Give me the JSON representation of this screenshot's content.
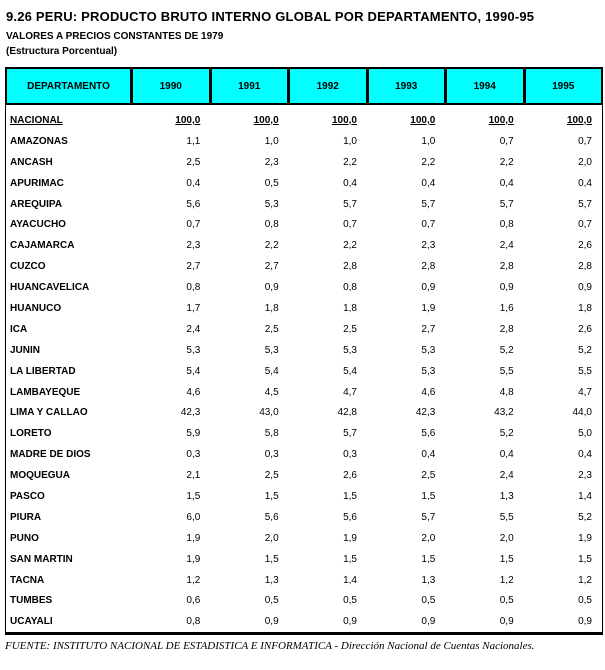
{
  "page": {
    "title": "9.26 PERU: PRODUCTO BRUTO INTERNO GLOBAL POR DEPARTAMENTO, 1990-95",
    "subtitle1": "VALORES A PRECIOS CONSTANTES DE 1979",
    "subtitle2": "(Estructura Porcentual)",
    "footer": "FUENTE: INSTITUTO NACIONAL DE ESTADISTICA E INFORMATICA - Dirección Nacional de Cuentas Nacionales."
  },
  "colors": {
    "header_bg": "#00FFFF",
    "border": "#000000",
    "text": "#000000",
    "page_bg": "#FFFFFF"
  },
  "table": {
    "header": [
      "DEPARTAMENTO",
      "1990",
      "1991",
      "1992",
      "1993",
      "1994",
      "1995"
    ],
    "rows": [
      {
        "label": "NACIONAL",
        "underline": true,
        "values": [
          "100,0",
          "100,0",
          "100,0",
          "100,0",
          "100,0",
          "100,0"
        ]
      },
      {
        "label": "AMAZONAS",
        "underline": false,
        "values": [
          "1,1",
          "1,0",
          "1,0",
          "1,0",
          "0,7",
          "0,7"
        ]
      },
      {
        "label": "ANCASH",
        "underline": false,
        "values": [
          "2,5",
          "2,3",
          "2,2",
          "2,2",
          "2,2",
          "2,0"
        ]
      },
      {
        "label": "APURIMAC",
        "underline": false,
        "values": [
          "0,4",
          "0,5",
          "0,4",
          "0,4",
          "0,4",
          "0,4"
        ]
      },
      {
        "label": "AREQUIPA",
        "underline": false,
        "values": [
          "5,6",
          "5,3",
          "5,7",
          "5,7",
          "5,7",
          "5,7"
        ]
      },
      {
        "label": "AYACUCHO",
        "underline": false,
        "values": [
          "0,7",
          "0,8",
          "0,7",
          "0,7",
          "0,8",
          "0,7"
        ]
      },
      {
        "label": "CAJAMARCA",
        "underline": false,
        "values": [
          "2,3",
          "2,2",
          "2,2",
          "2,3",
          "2,4",
          "2,6"
        ]
      },
      {
        "label": "CUZCO",
        "underline": false,
        "values": [
          "2,7",
          "2,7",
          "2,8",
          "2,8",
          "2,8",
          "2,8"
        ]
      },
      {
        "label": "HUANCAVELICA",
        "underline": false,
        "values": [
          "0,8",
          "0,9",
          "0,8",
          "0,9",
          "0,9",
          "0,9"
        ]
      },
      {
        "label": "HUANUCO",
        "underline": false,
        "values": [
          "1,7",
          "1,8",
          "1,8",
          "1,9",
          "1,6",
          "1,8"
        ]
      },
      {
        "label": "ICA",
        "underline": false,
        "values": [
          "2,4",
          "2,5",
          "2,5",
          "2,7",
          "2,8",
          "2,6"
        ]
      },
      {
        "label": "JUNIN",
        "underline": false,
        "values": [
          "5,3",
          "5,3",
          "5,3",
          "5,3",
          "5,2",
          "5,2"
        ]
      },
      {
        "label": "LA LIBERTAD",
        "underline": false,
        "values": [
          "5,4",
          "5,4",
          "5,4",
          "5,3",
          "5,5",
          "5,5"
        ]
      },
      {
        "label": "LAMBAYEQUE",
        "underline": false,
        "values": [
          "4,6",
          "4,5",
          "4,7",
          "4,6",
          "4,8",
          "4,7"
        ]
      },
      {
        "label": "LIMA Y CALLAO",
        "underline": false,
        "values": [
          "42,3",
          "43,0",
          "42,8",
          "42,3",
          "43,2",
          "44,0"
        ]
      },
      {
        "label": "LORETO",
        "underline": false,
        "values": [
          "5,9",
          "5,8",
          "5,7",
          "5,6",
          "5,2",
          "5,0"
        ]
      },
      {
        "label": "MADRE DE DIOS",
        "underline": false,
        "values": [
          "0,3",
          "0,3",
          "0,3",
          "0,4",
          "0,4",
          "0,4"
        ]
      },
      {
        "label": "MOQUEGUA",
        "underline": false,
        "values": [
          "2,1",
          "2,5",
          "2,6",
          "2,5",
          "2,4",
          "2,3"
        ]
      },
      {
        "label": "PASCO",
        "underline": false,
        "values": [
          "1,5",
          "1,5",
          "1,5",
          "1,5",
          "1,3",
          "1,4"
        ]
      },
      {
        "label": "PIURA",
        "underline": false,
        "values": [
          "6,0",
          "5,6",
          "5,6",
          "5,7",
          "5,5",
          "5,2"
        ]
      },
      {
        "label": "PUNO",
        "underline": false,
        "values": [
          "1,9",
          "2,0",
          "1,9",
          "2,0",
          "2,0",
          "1,9"
        ]
      },
      {
        "label": "SAN MARTIN",
        "underline": false,
        "values": [
          "1,9",
          "1,5",
          "1,5",
          "1,5",
          "1,5",
          "1,5"
        ]
      },
      {
        "label": "TACNA",
        "underline": false,
        "values": [
          "1,2",
          "1,3",
          "1,4",
          "1,3",
          "1,2",
          "1,2"
        ]
      },
      {
        "label": "TUMBES",
        "underline": false,
        "values": [
          "0,6",
          "0,5",
          "0,5",
          "0,5",
          "0,5",
          "0,5"
        ]
      },
      {
        "label": "UCAYALI",
        "underline": false,
        "values": [
          "0,8",
          "0,9",
          "0,9",
          "0,9",
          "0,9",
          "0,9"
        ]
      }
    ]
  }
}
